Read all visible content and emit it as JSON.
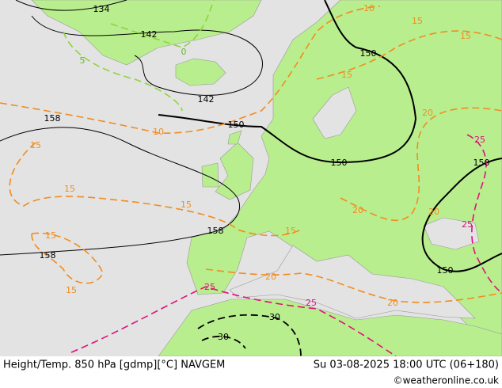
{
  "map": {
    "contour_labels": [
      "134",
      "142",
      "142",
      "150",
      "150",
      "150",
      "150",
      "150",
      "158",
      "158",
      "158",
      "10",
      "10",
      "15",
      "15",
      "15",
      "15",
      "15",
      "15",
      "15",
      "15",
      "15",
      "20",
      "20",
      "20",
      "20",
      "20",
      "25",
      "25",
      "25",
      "25",
      "30",
      "30",
      "5",
      "0"
    ]
  },
  "footer": {
    "title": "Height/Temp. 850 hPa [gdmp][°C] NAVGEM",
    "datetime": "Su 03-08-2025 18:00 UTC (06+180)",
    "credit": "©weatheronline.co.uk"
  }
}
